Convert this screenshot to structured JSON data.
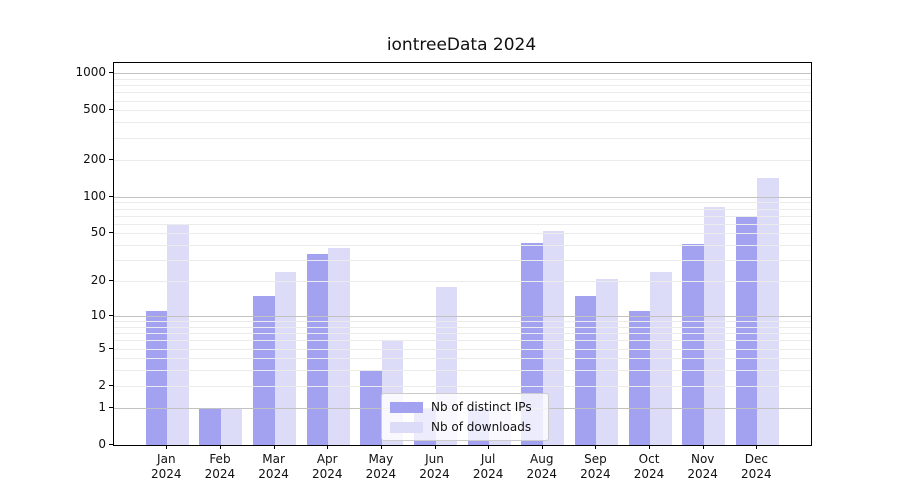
{
  "chart_data": {
    "type": "bar",
    "title": "iontreeData 2024",
    "categories": [
      "Jan",
      "Feb",
      "Mar",
      "Apr",
      "May",
      "Jun",
      "Jul",
      "Aug",
      "Sep",
      "Oct",
      "Nov",
      "Dec"
    ],
    "category_year": "2024",
    "series": [
      {
        "name": "Nb of distinct IPs",
        "color": "#a2a2f0",
        "values": [
          11,
          1,
          15,
          34,
          3,
          1,
          1,
          42,
          15,
          11,
          41,
          68
        ]
      },
      {
        "name": "Nb of downloads",
        "color": "#dcdcf8",
        "values": [
          60,
          1,
          24,
          38,
          6,
          18,
          1,
          52,
          21,
          24,
          83,
          143
        ]
      }
    ],
    "yscale": "log1p",
    "yticks": [
      0,
      1,
      2,
      5,
      10,
      20,
      50,
      100,
      200,
      500,
      1000
    ],
    "ylim": [
      0,
      1210
    ],
    "grid": true,
    "legend_position": "lower-center",
    "colors": {
      "major_gridline": "#c2c2c2",
      "minor_gridline": "#ebebeb",
      "axis": "#000000",
      "background": "#ffffff"
    }
  }
}
